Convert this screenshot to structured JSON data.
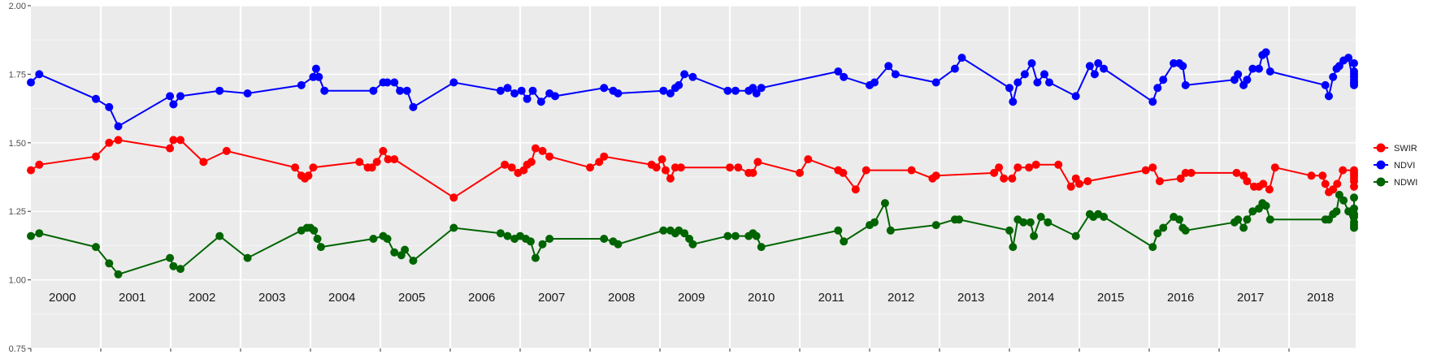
{
  "chart_data": {
    "type": "line",
    "title": "",
    "xlabel": "",
    "ylabel": "",
    "ylim": [
      0.75,
      2.0
    ],
    "y_ticks": [
      "0.75",
      "1.00",
      "1.25",
      "1.50",
      "1.75",
      "2.00"
    ],
    "xlim": [
      2000.0,
      2018.95
    ],
    "year_labels": [
      "2000",
      "2001",
      "2002",
      "2003",
      "2004",
      "2005",
      "2006",
      "2007",
      "2008",
      "2009",
      "2010",
      "2011",
      "2012",
      "2013",
      "2014",
      "2015",
      "2016",
      "2017",
      "2018"
    ],
    "grid": true,
    "legend_position": "right",
    "series": [
      {
        "name": "SWIR",
        "color": "#ff0000",
        "points": [
          [
            2000.0,
            1.4
          ],
          [
            2000.12,
            1.42
          ],
          [
            2000.93,
            1.45
          ],
          [
            2001.12,
            1.5
          ],
          [
            2001.25,
            1.51
          ],
          [
            2001.99,
            1.48
          ],
          [
            2002.04,
            1.51
          ],
          [
            2002.14,
            1.51
          ],
          [
            2002.47,
            1.43
          ],
          [
            2002.8,
            1.47
          ],
          [
            2003.78,
            1.41
          ],
          [
            2003.87,
            1.38
          ],
          [
            2003.92,
            1.37
          ],
          [
            2003.97,
            1.38
          ],
          [
            2004.04,
            1.41
          ],
          [
            2004.7,
            1.43
          ],
          [
            2004.82,
            1.41
          ],
          [
            2004.88,
            1.41
          ],
          [
            2004.95,
            1.43
          ],
          [
            2005.04,
            1.47
          ],
          [
            2005.11,
            1.44
          ],
          [
            2005.2,
            1.44
          ],
          [
            2006.05,
            1.3
          ],
          [
            2006.78,
            1.42
          ],
          [
            2006.88,
            1.41
          ],
          [
            2006.97,
            1.39
          ],
          [
            2007.05,
            1.4
          ],
          [
            2007.1,
            1.42
          ],
          [
            2007.16,
            1.43
          ],
          [
            2007.22,
            1.48
          ],
          [
            2007.32,
            1.47
          ],
          [
            2007.42,
            1.45
          ],
          [
            2008.0,
            1.41
          ],
          [
            2008.13,
            1.43
          ],
          [
            2008.2,
            1.45
          ],
          [
            2008.88,
            1.42
          ],
          [
            2008.95,
            1.41
          ],
          [
            2009.03,
            1.44
          ],
          [
            2009.08,
            1.4
          ],
          [
            2009.15,
            1.37
          ],
          [
            2009.22,
            1.41
          ],
          [
            2009.3,
            1.41
          ],
          [
            2010.0,
            1.41
          ],
          [
            2010.12,
            1.41
          ],
          [
            2010.27,
            1.39
          ],
          [
            2010.33,
            1.39
          ],
          [
            2010.4,
            1.43
          ],
          [
            2011.0,
            1.39
          ],
          [
            2011.12,
            1.44
          ],
          [
            2011.55,
            1.4
          ],
          [
            2011.62,
            1.39
          ],
          [
            2011.8,
            1.33
          ],
          [
            2011.95,
            1.4
          ],
          [
            2012.6,
            1.4
          ],
          [
            2012.9,
            1.37
          ],
          [
            2012.95,
            1.38
          ],
          [
            2013.78,
            1.39
          ],
          [
            2013.85,
            1.41
          ],
          [
            2013.92,
            1.37
          ],
          [
            2014.04,
            1.37
          ],
          [
            2014.12,
            1.41
          ],
          [
            2014.28,
            1.41
          ],
          [
            2014.38,
            1.42
          ],
          [
            2014.7,
            1.42
          ],
          [
            2014.88,
            1.34
          ],
          [
            2014.95,
            1.37
          ],
          [
            2015.0,
            1.35
          ],
          [
            2015.12,
            1.36
          ],
          [
            2015.95,
            1.4
          ],
          [
            2016.05,
            1.41
          ],
          [
            2016.15,
            1.36
          ],
          [
            2016.45,
            1.37
          ],
          [
            2016.52,
            1.39
          ],
          [
            2016.6,
            1.39
          ],
          [
            2017.25,
            1.39
          ],
          [
            2017.35,
            1.38
          ],
          [
            2017.4,
            1.36
          ],
          [
            2017.5,
            1.34
          ],
          [
            2017.57,
            1.34
          ],
          [
            2017.63,
            1.35
          ],
          [
            2017.72,
            1.33
          ],
          [
            2017.8,
            1.41
          ],
          [
            2018.32,
            1.38
          ],
          [
            2018.48,
            1.38
          ],
          [
            2018.52,
            1.35
          ],
          [
            2018.57,
            1.32
          ],
          [
            2018.63,
            1.33
          ],
          [
            2018.69,
            1.35
          ],
          [
            2018.77,
            1.4
          ],
          [
            2018.93,
            1.4
          ],
          [
            2019.0,
            1.39
          ],
          [
            2019.08,
            1.38
          ],
          [
            2019.14,
            1.37
          ],
          [
            2019.2,
            1.36
          ],
          [
            2019.27,
            1.34
          ]
        ]
      },
      {
        "name": "NDVI",
        "color": "#0000ff",
        "points": [
          [
            2000.0,
            1.72
          ],
          [
            2000.12,
            1.75
          ],
          [
            2000.93,
            1.66
          ],
          [
            2001.12,
            1.63
          ],
          [
            2001.25,
            1.56
          ],
          [
            2001.99,
            1.67
          ],
          [
            2002.04,
            1.64
          ],
          [
            2002.14,
            1.67
          ],
          [
            2002.7,
            1.69
          ],
          [
            2003.1,
            1.68
          ],
          [
            2003.87,
            1.71
          ],
          [
            2004.04,
            1.74
          ],
          [
            2004.08,
            1.77
          ],
          [
            2004.12,
            1.74
          ],
          [
            2004.2,
            1.69
          ],
          [
            2004.9,
            1.69
          ],
          [
            2005.04,
            1.72
          ],
          [
            2005.1,
            1.72
          ],
          [
            2005.2,
            1.72
          ],
          [
            2005.28,
            1.69
          ],
          [
            2005.38,
            1.69
          ],
          [
            2005.47,
            1.63
          ],
          [
            2006.05,
            1.72
          ],
          [
            2006.72,
            1.69
          ],
          [
            2006.82,
            1.7
          ],
          [
            2006.92,
            1.68
          ],
          [
            2007.02,
            1.69
          ],
          [
            2007.1,
            1.66
          ],
          [
            2007.18,
            1.69
          ],
          [
            2007.3,
            1.65
          ],
          [
            2007.42,
            1.68
          ],
          [
            2007.5,
            1.67
          ],
          [
            2008.2,
            1.7
          ],
          [
            2008.33,
            1.69
          ],
          [
            2008.4,
            1.68
          ],
          [
            2009.05,
            1.69
          ],
          [
            2009.15,
            1.68
          ],
          [
            2009.22,
            1.7
          ],
          [
            2009.27,
            1.71
          ],
          [
            2009.35,
            1.75
          ],
          [
            2009.47,
            1.74
          ],
          [
            2009.97,
            1.69
          ],
          [
            2010.08,
            1.69
          ],
          [
            2010.27,
            1.69
          ],
          [
            2010.33,
            1.7
          ],
          [
            2010.38,
            1.68
          ],
          [
            2010.45,
            1.7
          ],
          [
            2011.55,
            1.76
          ],
          [
            2011.63,
            1.74
          ],
          [
            2012.0,
            1.71
          ],
          [
            2012.07,
            1.72
          ],
          [
            2012.27,
            1.78
          ],
          [
            2012.37,
            1.75
          ],
          [
            2012.95,
            1.72
          ],
          [
            2013.22,
            1.77
          ],
          [
            2013.32,
            1.81
          ],
          [
            2014.0,
            1.7
          ],
          [
            2014.05,
            1.65
          ],
          [
            2014.12,
            1.72
          ],
          [
            2014.22,
            1.75
          ],
          [
            2014.32,
            1.79
          ],
          [
            2014.4,
            1.72
          ],
          [
            2014.5,
            1.75
          ],
          [
            2014.57,
            1.72
          ],
          [
            2014.95,
            1.67
          ],
          [
            2015.15,
            1.78
          ],
          [
            2015.22,
            1.75
          ],
          [
            2015.27,
            1.79
          ],
          [
            2015.35,
            1.77
          ],
          [
            2016.05,
            1.65
          ],
          [
            2016.12,
            1.7
          ],
          [
            2016.2,
            1.73
          ],
          [
            2016.35,
            1.79
          ],
          [
            2016.43,
            1.79
          ],
          [
            2016.48,
            1.78
          ],
          [
            2016.52,
            1.71
          ],
          [
            2017.22,
            1.73
          ],
          [
            2017.27,
            1.75
          ],
          [
            2017.35,
            1.71
          ],
          [
            2017.4,
            1.73
          ],
          [
            2017.48,
            1.77
          ],
          [
            2017.57,
            1.77
          ],
          [
            2017.62,
            1.82
          ],
          [
            2017.67,
            1.83
          ],
          [
            2017.73,
            1.76
          ],
          [
            2018.52,
            1.71
          ],
          [
            2018.57,
            1.67
          ],
          [
            2018.63,
            1.74
          ],
          [
            2018.68,
            1.77
          ],
          [
            2018.72,
            1.78
          ],
          [
            2018.78,
            1.8
          ],
          [
            2018.85,
            1.81
          ],
          [
            2019.0,
            1.71
          ],
          [
            2019.1,
            1.72
          ],
          [
            2019.45,
            1.72
          ],
          [
            2019.53,
            1.73
          ],
          [
            2019.6,
            1.74
          ],
          [
            2019.68,
            1.75
          ],
          [
            2019.78,
            1.76
          ],
          [
            2019.88,
            1.79
          ]
        ]
      },
      {
        "name": "NDWI",
        "color": "#006400",
        "points": [
          [
            2000.0,
            1.16
          ],
          [
            2000.12,
            1.17
          ],
          [
            2000.93,
            1.12
          ],
          [
            2001.12,
            1.06
          ],
          [
            2001.25,
            1.02
          ],
          [
            2001.99,
            1.08
          ],
          [
            2002.04,
            1.05
          ],
          [
            2002.14,
            1.04
          ],
          [
            2002.7,
            1.16
          ],
          [
            2003.1,
            1.08
          ],
          [
            2003.87,
            1.18
          ],
          [
            2003.95,
            1.19
          ],
          [
            2004.0,
            1.19
          ],
          [
            2004.05,
            1.18
          ],
          [
            2004.1,
            1.15
          ],
          [
            2004.15,
            1.12
          ],
          [
            2004.9,
            1.15
          ],
          [
            2005.04,
            1.16
          ],
          [
            2005.1,
            1.15
          ],
          [
            2005.2,
            1.1
          ],
          [
            2005.3,
            1.09
          ],
          [
            2005.35,
            1.11
          ],
          [
            2005.47,
            1.07
          ],
          [
            2006.05,
            1.19
          ],
          [
            2006.72,
            1.17
          ],
          [
            2006.82,
            1.16
          ],
          [
            2006.92,
            1.15
          ],
          [
            2007.0,
            1.16
          ],
          [
            2007.08,
            1.15
          ],
          [
            2007.15,
            1.14
          ],
          [
            2007.22,
            1.08
          ],
          [
            2007.32,
            1.13
          ],
          [
            2007.42,
            1.15
          ],
          [
            2008.2,
            1.15
          ],
          [
            2008.33,
            1.14
          ],
          [
            2008.4,
            1.13
          ],
          [
            2009.05,
            1.18
          ],
          [
            2009.15,
            1.18
          ],
          [
            2009.22,
            1.17
          ],
          [
            2009.27,
            1.18
          ],
          [
            2009.35,
            1.17
          ],
          [
            2009.42,
            1.15
          ],
          [
            2009.47,
            1.13
          ],
          [
            2009.97,
            1.16
          ],
          [
            2010.08,
            1.16
          ],
          [
            2010.27,
            1.16
          ],
          [
            2010.33,
            1.17
          ],
          [
            2010.38,
            1.16
          ],
          [
            2010.45,
            1.12
          ],
          [
            2011.55,
            1.18
          ],
          [
            2011.63,
            1.14
          ],
          [
            2012.0,
            1.2
          ],
          [
            2012.07,
            1.21
          ],
          [
            2012.22,
            1.28
          ],
          [
            2012.3,
            1.18
          ],
          [
            2012.95,
            1.2
          ],
          [
            2013.22,
            1.22
          ],
          [
            2013.28,
            1.22
          ],
          [
            2014.0,
            1.18
          ],
          [
            2014.05,
            1.12
          ],
          [
            2014.12,
            1.22
          ],
          [
            2014.2,
            1.21
          ],
          [
            2014.3,
            1.21
          ],
          [
            2014.35,
            1.16
          ],
          [
            2014.45,
            1.23
          ],
          [
            2014.55,
            1.21
          ],
          [
            2014.95,
            1.16
          ],
          [
            2015.15,
            1.24
          ],
          [
            2015.2,
            1.23
          ],
          [
            2015.27,
            1.24
          ],
          [
            2015.35,
            1.23
          ],
          [
            2016.05,
            1.12
          ],
          [
            2016.12,
            1.17
          ],
          [
            2016.2,
            1.19
          ],
          [
            2016.35,
            1.23
          ],
          [
            2016.43,
            1.22
          ],
          [
            2016.48,
            1.19
          ],
          [
            2016.52,
            1.18
          ],
          [
            2017.22,
            1.21
          ],
          [
            2017.27,
            1.22
          ],
          [
            2017.35,
            1.19
          ],
          [
            2017.4,
            1.22
          ],
          [
            2017.48,
            1.25
          ],
          [
            2017.57,
            1.26
          ],
          [
            2017.62,
            1.28
          ],
          [
            2017.67,
            1.27
          ],
          [
            2017.73,
            1.22
          ],
          [
            2018.52,
            1.22
          ],
          [
            2018.57,
            1.22
          ],
          [
            2018.63,
            1.24
          ],
          [
            2018.68,
            1.25
          ],
          [
            2018.72,
            1.31
          ],
          [
            2018.78,
            1.29
          ],
          [
            2018.85,
            1.25
          ],
          [
            2019.0,
            1.19
          ],
          [
            2019.1,
            1.21
          ],
          [
            2019.45,
            1.2
          ],
          [
            2019.53,
            1.23
          ],
          [
            2019.6,
            1.24
          ],
          [
            2019.68,
            1.24
          ],
          [
            2019.78,
            1.26
          ],
          [
            2019.88,
            1.3
          ]
        ]
      }
    ]
  }
}
